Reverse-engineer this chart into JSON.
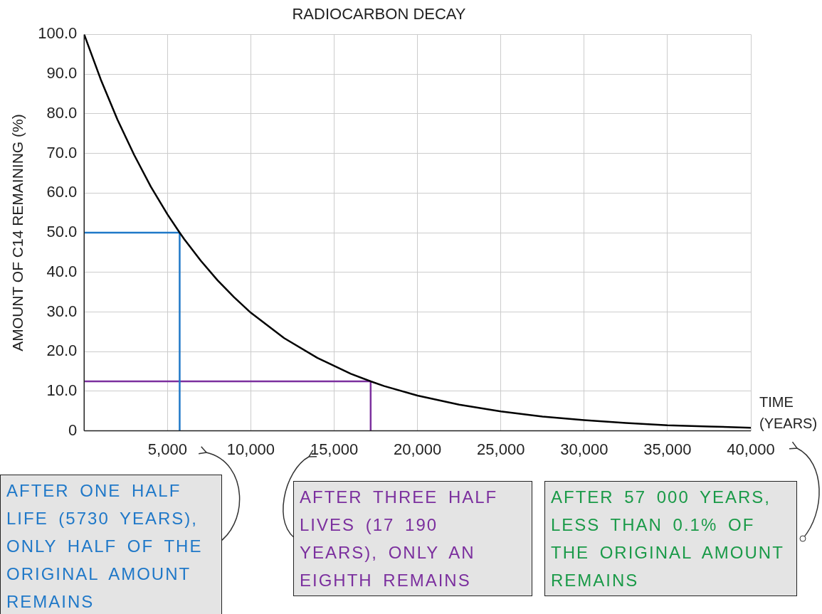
{
  "chart_data": {
    "type": "line",
    "title": "RADIOCARBON DECAY",
    "xlabel": "TIME (YEARS)",
    "ylabel": "AMOUNT OF C14 REMAINING (%)",
    "xlim": [
      0,
      40000
    ],
    "ylim": [
      0,
      100
    ],
    "xticks": [
      {
        "value": 0,
        "label": null
      },
      {
        "value": 5000,
        "label": "5,000"
      },
      {
        "value": 10000,
        "label": "10,000"
      },
      {
        "value": 15000,
        "label": "15,000"
      },
      {
        "value": 20000,
        "label": "20,000"
      },
      {
        "value": 25000,
        "label": "25,000"
      },
      {
        "value": 30000,
        "label": "30,000"
      },
      {
        "value": 35000,
        "label": "35,000"
      },
      {
        "value": 40000,
        "label": "40,000"
      }
    ],
    "yticks": [
      0,
      {
        "value": 10,
        "label": "10.0"
      },
      {
        "value": 20,
        "label": "20.0"
      },
      {
        "value": 30,
        "label": "30.0"
      },
      {
        "value": 40,
        "label": "40.0"
      },
      {
        "value": 50,
        "label": "50.0"
      },
      {
        "value": 60,
        "label": "60.0"
      },
      {
        "value": 70,
        "label": "70.0"
      },
      {
        "value": 80,
        "label": "80.0"
      },
      {
        "value": 90,
        "label": "90.0"
      },
      {
        "value": 100,
        "label": "100.0"
      }
    ],
    "grid": true,
    "legend": false,
    "marker": "none",
    "line_style": "solid",
    "series": [
      {
        "color": "#000000",
        "x": [
          0,
          1000,
          2000,
          3000,
          4000,
          5000,
          5730,
          6000,
          7000,
          8000,
          9000,
          10000,
          12000,
          14000,
          16000,
          17190,
          18000,
          20000,
          22500,
          25000,
          27500,
          30000,
          32500,
          35000,
          37500,
          40000
        ],
        "values": [
          100,
          88.6,
          78.5,
          69.6,
          61.6,
          54.6,
          50,
          48.4,
          42.9,
          38,
          33.7,
          29.8,
          23.4,
          18.4,
          14.4,
          12.5,
          11.3,
          8.9,
          6.6,
          4.9,
          3.6,
          2.7,
          2,
          1.4,
          1.1,
          0.8
        ]
      },
      {
        "color": "#1f78c8",
        "x": [
          0,
          5730,
          5730
        ],
        "values": [
          50,
          50,
          0
        ]
      },
      {
        "color": "#7b2f9e",
        "x": [
          0,
          17190,
          17190
        ],
        "values": [
          12.5,
          12.5,
          0
        ]
      }
    ],
    "annotations": [
      "AFTER ONE HALF LIFE (5730 YEARS), ONLY HALF OF THE ORIGINAL AMOUNT REMAINS",
      "AFTER THREE HALF LIVES (17 190 YEARS), ONLY AN EIGHTH REMAINS",
      "AFTER 57 000 YEARS, LESS THAN 0.1% OF THE ORIGINAL AMOUNT REMAINS"
    ]
  }
}
